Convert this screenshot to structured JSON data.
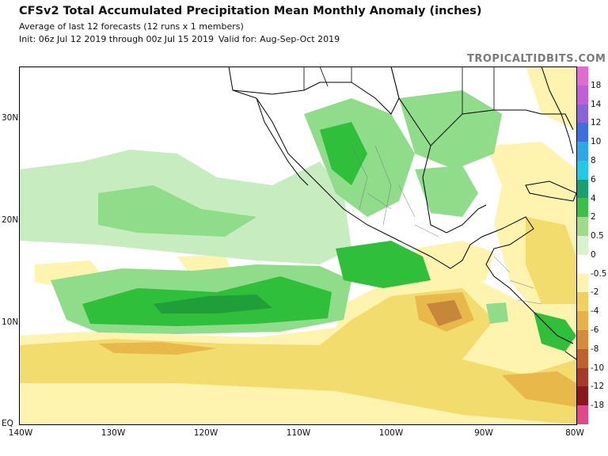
{
  "header": {
    "title": "CFSv2 Total Accumulated Precipitation Mean Monthly Anomaly (inches)",
    "subtitle": "Average of last 12 forecasts (12 runs x 1 members)",
    "init": "Init: 06z Jul 12 2019 through 00z Jul 15 2019",
    "valid": "Valid for: Aug-Sep-Oct 2019",
    "brand": "TROPICALTIDBITS.COM"
  },
  "map": {
    "lat_labels": [
      "30N",
      "20N",
      "10N",
      "EQ"
    ],
    "lon_labels": [
      "140W",
      "130W",
      "120W",
      "110W",
      "100W",
      "90W",
      "80W"
    ],
    "lat_range": [
      0,
      35
    ],
    "lon_range": [
      -140,
      -80
    ],
    "anomaly_regions": {
      "wet_light": "#c6ecc0",
      "wet_medium": "#8fdc8a",
      "wet_strong": "#2fbf3a",
      "wet_max": "#1f9e3a",
      "dry_light": "#fff3b0",
      "dry_medium": "#f3dc6e",
      "dry_strong": "#e8b84a",
      "dry_max": "#c7873a"
    }
  },
  "colorbar": {
    "labels": [
      "18",
      "14",
      "12",
      "10",
      "8",
      "6",
      "4",
      "2",
      "0.5",
      "0",
      "-0.5",
      "-2",
      "-4",
      "-6",
      "-8",
      "-10",
      "-12",
      "-18"
    ],
    "colors": [
      "#e06ad0",
      "#c25fd6",
      "#8a63d8",
      "#3b6fe0",
      "#2aa8e8",
      "#22c8e6",
      "#1aa06a",
      "#38c048",
      "#9edc8a",
      "#d8f2cc",
      "#ffffff",
      "#fff3b0",
      "#f2d060",
      "#e8b048",
      "#d88a38",
      "#c0602c",
      "#a83828",
      "#8a1818",
      "#e04888"
    ]
  }
}
